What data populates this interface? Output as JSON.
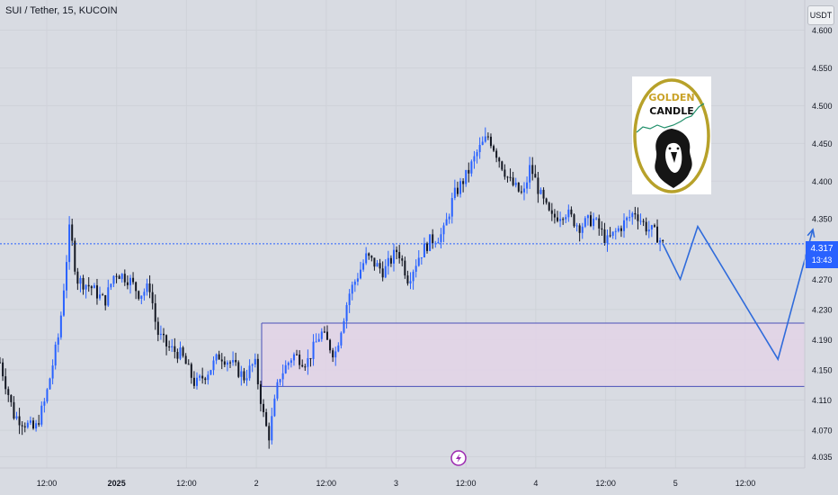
{
  "header": {
    "symbol_title": "SUI / Tether, 15, KUCOIN",
    "currency_label": "USDT"
  },
  "last_price": {
    "value_label": "4.317",
    "countdown": "13:43"
  },
  "logo": {
    "line1": "GOLDEN",
    "line2": "CANDLE"
  },
  "colors": {
    "background": "#d8dbe2",
    "accent": "#2962ff",
    "candle_up": "#2962ff",
    "candle_down": "#131722",
    "zone_fill": "#e3d3e6",
    "zone_border": "#4a50b8",
    "projection": "#2f6bdb",
    "logo_gold": "#b7a12a"
  },
  "chart_data": {
    "type": "candlestick",
    "symbol": "SUI / Tether",
    "interval": "15",
    "exchange": "KUCOIN",
    "ylim": [
      4.02,
      4.64
    ],
    "y_ticks": [
      4.6,
      4.55,
      4.5,
      4.45,
      4.4,
      4.35,
      4.27,
      4.23,
      4.19,
      4.15,
      4.11,
      4.07,
      4.035
    ],
    "y_tick_labels": [
      "4.600",
      "4.550",
      "4.500",
      "4.450",
      "4.400",
      "4.350",
      "4.270",
      "4.230",
      "4.190",
      "4.150",
      "4.110",
      "4.070",
      "4.035"
    ],
    "x_tick_labels": [
      "12:00",
      "2025",
      "12:00",
      "2",
      "12:00",
      "3",
      "12:00",
      "4",
      "12:00",
      "5",
      "12:00"
    ],
    "current_price": 4.317,
    "price_path": [
      [
        0,
        4.16
      ],
      [
        0.4,
        4.09
      ],
      [
        1,
        4.07
      ],
      [
        1.3,
        4.11
      ],
      [
        1.7,
        4.2
      ],
      [
        2,
        4.34
      ],
      [
        2.2,
        4.27
      ],
      [
        2.6,
        4.26
      ],
      [
        3,
        4.24
      ],
      [
        3.3,
        4.28
      ],
      [
        3.7,
        4.27
      ],
      [
        4,
        4.25
      ],
      [
        4.3,
        4.26
      ],
      [
        4.5,
        4.2
      ],
      [
        4.8,
        4.18
      ],
      [
        5.2,
        4.17
      ],
      [
        5.6,
        4.13
      ],
      [
        6,
        4.15
      ],
      [
        6.3,
        4.17
      ],
      [
        6.6,
        4.16
      ],
      [
        7,
        4.14
      ],
      [
        7.3,
        4.16
      ],
      [
        7.55,
        4.09
      ],
      [
        7.7,
        4.06
      ],
      [
        8,
        4.14
      ],
      [
        8.4,
        4.17
      ],
      [
        8.8,
        4.16
      ],
      [
        9.2,
        4.2
      ],
      [
        9.6,
        4.17
      ],
      [
        10,
        4.25
      ],
      [
        10.5,
        4.3
      ],
      [
        11,
        4.28
      ],
      [
        11.4,
        4.31
      ],
      [
        11.7,
        4.27
      ],
      [
        12,
        4.3
      ],
      [
        12.3,
        4.32
      ],
      [
        12.7,
        4.33
      ],
      [
        13,
        4.38
      ],
      [
        13.4,
        4.41
      ],
      [
        13.7,
        4.44
      ],
      [
        14,
        4.46
      ],
      [
        14.3,
        4.43
      ],
      [
        14.6,
        4.4
      ],
      [
        15,
        4.38
      ],
      [
        15.2,
        4.42
      ],
      [
        15.5,
        4.38
      ],
      [
        15.8,
        4.35
      ],
      [
        16.2,
        4.36
      ],
      [
        16.6,
        4.34
      ],
      [
        17,
        4.35
      ],
      [
        17.4,
        4.32
      ],
      [
        17.8,
        4.34
      ],
      [
        18.2,
        4.36
      ],
      [
        18.5,
        4.34
      ],
      [
        18.8,
        4.33
      ],
      [
        19,
        4.317
      ]
    ],
    "demand_zone": {
      "top": 4.212,
      "bottom": 4.128,
      "start_x": 7.5,
      "end_x": 33.5
    },
    "projection_path": [
      [
        19,
        4.317
      ],
      [
        19.5,
        4.27
      ],
      [
        20,
        4.34
      ],
      [
        22.3,
        4.164
      ],
      [
        23.3,
        4.336
      ]
    ]
  }
}
